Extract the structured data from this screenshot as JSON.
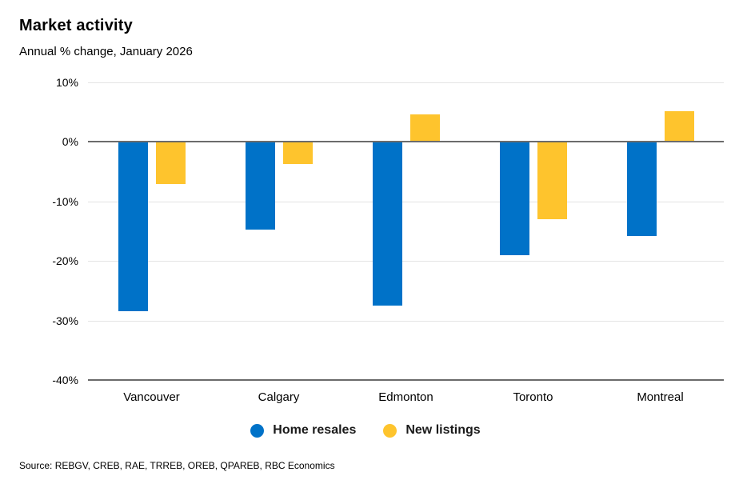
{
  "header": {
    "title": "Market activity",
    "subtitle": "Annual % change, January 2026"
  },
  "chart_data": {
    "type": "bar",
    "title": "Market activity",
    "subtitle": "Annual % change, January 2026",
    "categories": [
      "Vancouver",
      "Calgary",
      "Edmonton",
      "Toronto",
      "Montreal"
    ],
    "series": [
      {
        "name": "Home resales",
        "color": "#0072C8",
        "values": [
          -28.5,
          -14.7,
          -27.5,
          -19.0,
          -15.8
        ]
      },
      {
        "name": "New listings",
        "color": "#FEC42D",
        "values": [
          -7.1,
          -3.7,
          4.6,
          -13.0,
          5.2
        ]
      }
    ],
    "xlabel": "",
    "ylabel": "",
    "ylim": [
      -40,
      10
    ],
    "yticks": [
      10,
      0,
      -10,
      -20,
      -30,
      -40
    ],
    "ytick_labels": [
      "10%",
      "0%",
      "-10%",
      "-20%",
      "-30%",
      "-40%"
    ],
    "emphasized_lines": [
      0,
      -40
    ],
    "grid": true,
    "legend_position": "bottom",
    "gridline_color": "#e4e4e4",
    "axis_line_color": "#6b6b6b"
  },
  "footer": {
    "source": "Source: REBGV, CREB, RAE, TRREB, OREB, QPAREB, RBC Economics"
  }
}
